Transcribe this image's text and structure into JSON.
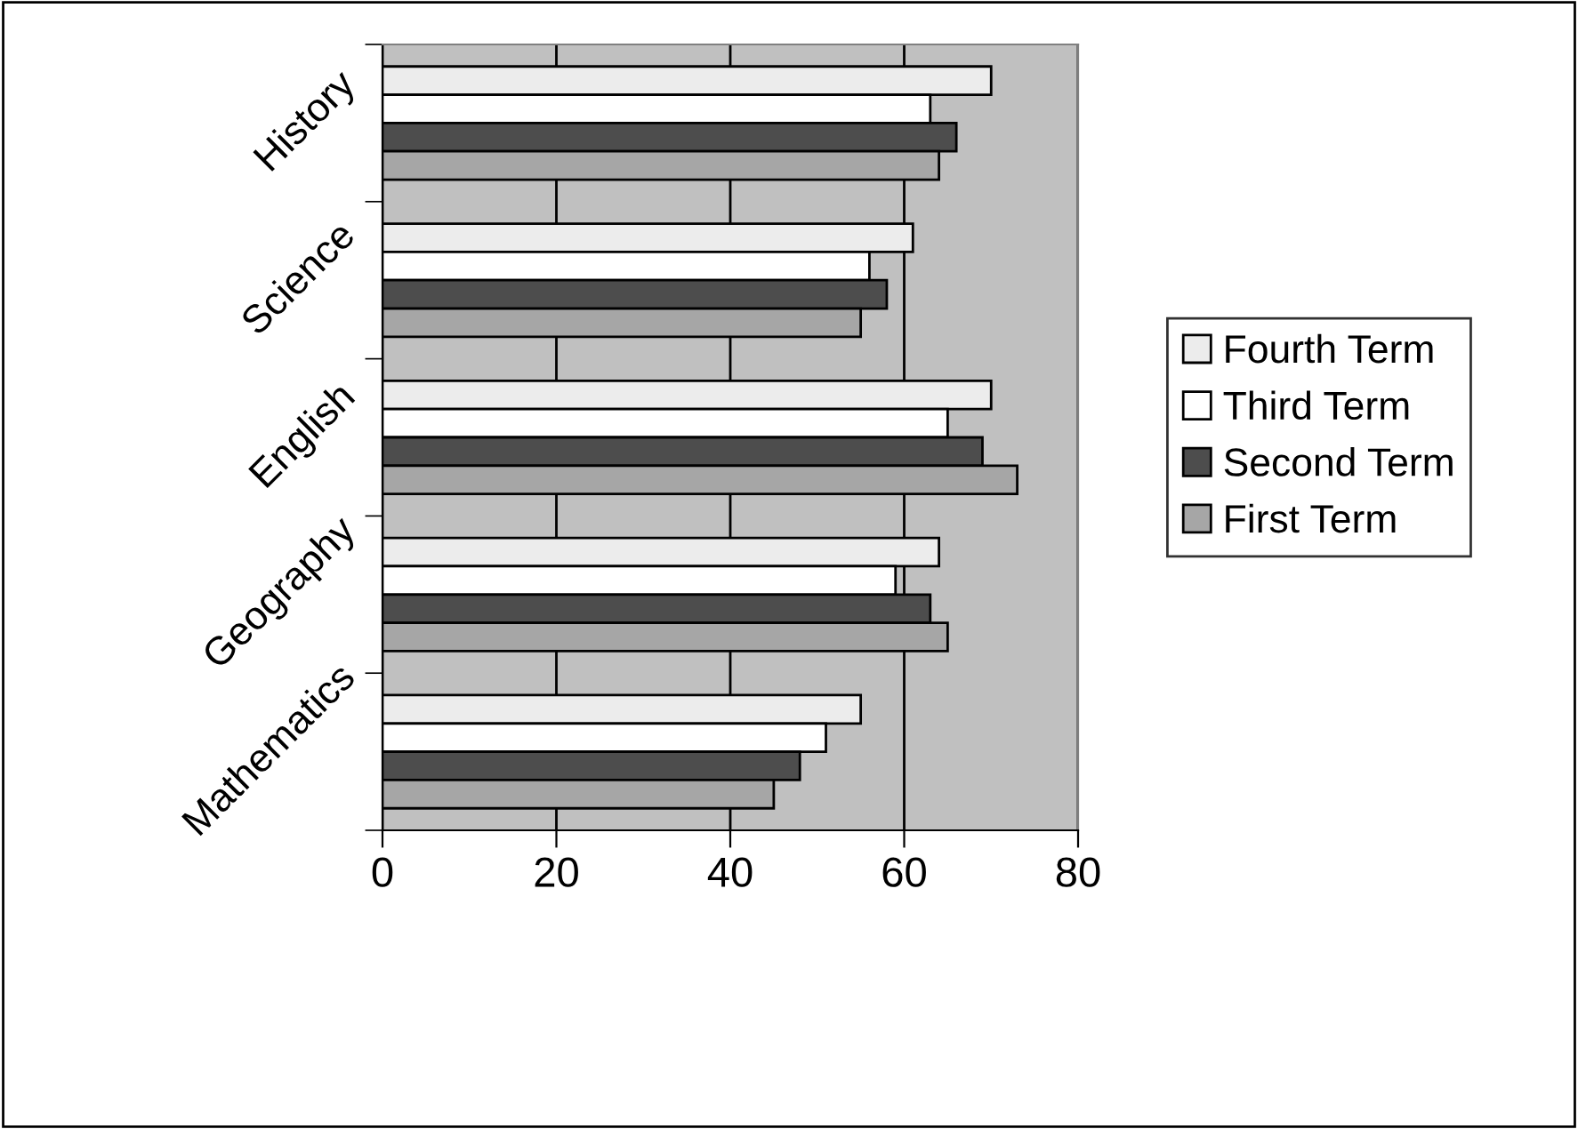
{
  "chart_data": {
    "type": "bar",
    "orientation": "horizontal",
    "categories": [
      "History",
      "Science",
      "English",
      "Geography",
      "Mathematics"
    ],
    "series": [
      {
        "name": "Fourth Term",
        "color": "#ececec",
        "values": [
          70,
          61,
          70,
          64,
          55
        ]
      },
      {
        "name": "Third Term",
        "color": "#ffffff",
        "values": [
          63,
          56,
          65,
          59,
          51
        ]
      },
      {
        "name": "Second Term",
        "color": "#4d4d4d",
        "values": [
          66,
          58,
          69,
          63,
          48
        ]
      },
      {
        "name": "First Term",
        "color": "#a6a6a6",
        "values": [
          64,
          55,
          73,
          65,
          45
        ]
      }
    ],
    "xlim": [
      0,
      80
    ],
    "xticks": [
      0,
      20,
      40,
      60,
      80
    ],
    "grid": "x",
    "legend": "right"
  }
}
